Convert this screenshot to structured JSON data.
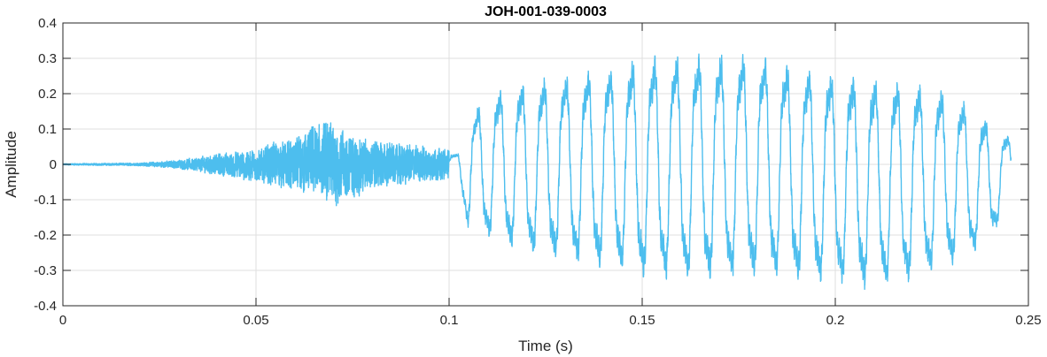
{
  "chart_data": {
    "type": "line",
    "title": "JOH-001-039-0003",
    "xlabel": "Time (s)",
    "ylabel": "Amplitude",
    "xlim": [
      0,
      0.25
    ],
    "ylim": [
      -0.4,
      0.4
    ],
    "x_ticks": [
      0,
      0.05,
      0.1,
      0.15,
      0.2,
      0.25
    ],
    "x_tick_labels": [
      "0",
      "0.05",
      "0.1",
      "0.15",
      "0.2",
      "0.25"
    ],
    "y_ticks": [
      -0.4,
      -0.3,
      -0.2,
      -0.1,
      0,
      0.1,
      0.2,
      0.3,
      0.4
    ],
    "y_tick_labels": [
      "-0.4",
      "-0.3",
      "-0.2",
      "-0.1",
      "0",
      "0.1",
      "0.2",
      "0.3",
      "0.4"
    ],
    "grid": true,
    "line_color": "#4DBEEE",
    "series": [
      {
        "signal_end_time": 0.2455,
        "envelope": {
          "t": [
            0,
            0.02,
            0.03,
            0.04,
            0.05,
            0.055,
            0.06,
            0.065,
            0.07,
            0.075,
            0.08,
            0.085,
            0.09,
            0.095,
            0.1,
            0.102,
            0.105,
            0.11,
            0.12,
            0.13,
            0.14,
            0.15,
            0.16,
            0.17,
            0.18,
            0.19,
            0.2,
            0.21,
            0.22,
            0.23,
            0.24,
            0.2455
          ],
          "max": [
            0.002,
            0.004,
            0.012,
            0.03,
            0.04,
            0.065,
            0.07,
            0.11,
            0.12,
            0.08,
            0.07,
            0.06,
            0.055,
            0.05,
            0.04,
            0.03,
            0.15,
            0.21,
            0.25,
            0.27,
            0.29,
            0.32,
            0.33,
            0.335,
            0.33,
            0.3,
            0.28,
            0.265,
            0.25,
            0.22,
            0.13,
            0.08
          ],
          "min": [
            -0.002,
            -0.004,
            -0.012,
            -0.03,
            -0.05,
            -0.06,
            -0.08,
            -0.09,
            -0.12,
            -0.1,
            -0.07,
            -0.06,
            -0.055,
            -0.05,
            -0.04,
            -0.03,
            -0.2,
            -0.22,
            -0.27,
            -0.29,
            -0.31,
            -0.34,
            -0.35,
            -0.35,
            -0.34,
            -0.35,
            -0.36,
            -0.37,
            -0.35,
            -0.3,
            -0.23,
            -0.1
          ]
        },
        "voiced_segment": {
          "start": 0.1,
          "end": 0.2455,
          "pitch_hz": 175
        }
      }
    ]
  }
}
